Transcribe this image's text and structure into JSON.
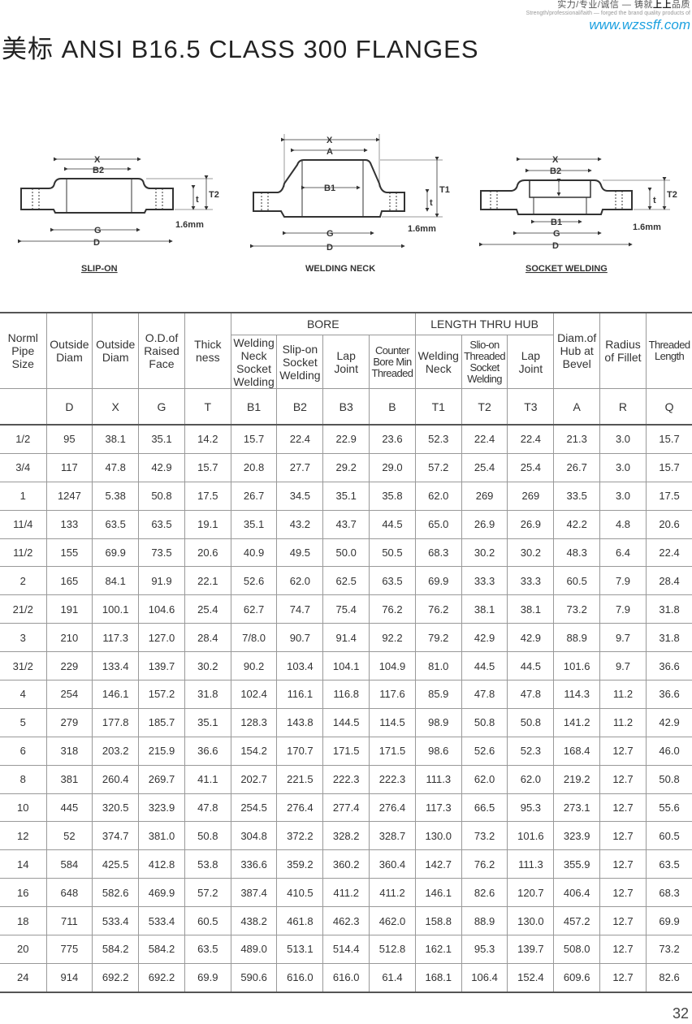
{
  "header": {
    "slogan_cn_prefix": "实力/专业/诚信 — 铸就",
    "slogan_cn_bold": "上上",
    "slogan_cn_suffix": "品质",
    "slogan_en": "Strength/professional/faith — forged the brand quality products of",
    "website": "www.wzssff.com"
  },
  "title": "美标 ANSI B16.5 CLASS 300 FLANGES",
  "diagrams": {
    "slip_on": {
      "caption": "SLIP-ON",
      "labels": {
        "x": "X",
        "b2": "B2",
        "t": "t",
        "t2": "T2",
        "mm": "1.6mm",
        "g": "G",
        "d": "D"
      }
    },
    "welding_neck": {
      "caption": "WELDING NECK",
      "labels": {
        "x": "X",
        "a": "A",
        "b1": "B1",
        "t1": "T1",
        "t": "t",
        "mm": "1.6mm",
        "g": "G",
        "d": "D"
      }
    },
    "socket_welding": {
      "caption": "SOCKET WELDING",
      "labels": {
        "x": "X",
        "b2": "B2",
        "t": "t",
        "t2": "T2",
        "b1": "B1",
        "g": "G",
        "mm": "1.6mm",
        "d": "D"
      }
    }
  },
  "table": {
    "group_headers": {
      "bore": "BORE",
      "length": "LENGTH THRU HUB"
    },
    "headers": {
      "size": "Norml Pipe Size",
      "d": "Outside Diam",
      "x": "Outside Diam",
      "g": "O.D.of Raised Face",
      "t": "Thick ness",
      "b1": "Welding Neck Socket Welding",
      "b2": "Slip-on Socket Welding",
      "b3": "Lap Joint",
      "b": "Counter Bore Min Threaded",
      "t1": "Welding Neck",
      "t2": "Slio-on Threaded Socket Welding",
      "t3": "Lap Joint",
      "a": "Diam.of Hub at Bevel",
      "r": "Radius of Fillet",
      "q": "Threaded Length"
    },
    "symbols": [
      "D",
      "X",
      "G",
      "T",
      "B1",
      "B2",
      "B3",
      "B",
      "T1",
      "T2",
      "T3",
      "A",
      "R",
      "Q"
    ],
    "rows": [
      [
        "1/2",
        "95",
        "38.1",
        "35.1",
        "14.2",
        "15.7",
        "22.4",
        "22.9",
        "23.6",
        "52.3",
        "22.4",
        "22.4",
        "21.3",
        "3.0",
        "15.7"
      ],
      [
        "3/4",
        "117",
        "47.8",
        "42.9",
        "15.7",
        "20.8",
        "27.7",
        "29.2",
        "29.0",
        "57.2",
        "25.4",
        "25.4",
        "26.7",
        "3.0",
        "15.7"
      ],
      [
        "1",
        "1247",
        "5.38",
        "50.8",
        "17.5",
        "26.7",
        "34.5",
        "35.1",
        "35.8",
        "62.0",
        "269",
        "269",
        "33.5",
        "3.0",
        "17.5"
      ],
      [
        "11/4",
        "133",
        "63.5",
        "63.5",
        "19.1",
        "35.1",
        "43.2",
        "43.7",
        "44.5",
        "65.0",
        "26.9",
        "26.9",
        "42.2",
        "4.8",
        "20.6"
      ],
      [
        "11/2",
        "155",
        "69.9",
        "73.5",
        "20.6",
        "40.9",
        "49.5",
        "50.0",
        "50.5",
        "68.3",
        "30.2",
        "30.2",
        "48.3",
        "6.4",
        "22.4"
      ],
      [
        "2",
        "165",
        "84.1",
        "91.9",
        "22.1",
        "52.6",
        "62.0",
        "62.5",
        "63.5",
        "69.9",
        "33.3",
        "33.3",
        "60.5",
        "7.9",
        "28.4"
      ],
      [
        "21/2",
        "191",
        "100.1",
        "104.6",
        "25.4",
        "62.7",
        "74.7",
        "75.4",
        "76.2",
        "76.2",
        "38.1",
        "38.1",
        "73.2",
        "7.9",
        "31.8"
      ],
      [
        "3",
        "210",
        "117.3",
        "127.0",
        "28.4",
        "7/8.0",
        "90.7",
        "91.4",
        "92.2",
        "79.2",
        "42.9",
        "42.9",
        "88.9",
        "9.7",
        "31.8"
      ],
      [
        "31/2",
        "229",
        "133.4",
        "139.7",
        "30.2",
        "90.2",
        "103.4",
        "104.1",
        "104.9",
        "81.0",
        "44.5",
        "44.5",
        "101.6",
        "9.7",
        "36.6"
      ],
      [
        "4",
        "254",
        "146.1",
        "157.2",
        "31.8",
        "102.4",
        "116.1",
        "116.8",
        "117.6",
        "85.9",
        "47.8",
        "47.8",
        "114.3",
        "11.2",
        "36.6"
      ],
      [
        "5",
        "279",
        "177.8",
        "185.7",
        "35.1",
        "128.3",
        "143.8",
        "144.5",
        "114.5",
        "98.9",
        "50.8",
        "50.8",
        "141.2",
        "11.2",
        "42.9"
      ],
      [
        "6",
        "318",
        "203.2",
        "215.9",
        "36.6",
        "154.2",
        "170.7",
        "171.5",
        "171.5",
        "98.6",
        "52.6",
        "52.3",
        "168.4",
        "12.7",
        "46.0"
      ],
      [
        "8",
        "381",
        "260.4",
        "269.7",
        "41.1",
        "202.7",
        "221.5",
        "222.3",
        "222.3",
        "111.3",
        "62.0",
        "62.0",
        "219.2",
        "12.7",
        "50.8"
      ],
      [
        "10",
        "445",
        "320.5",
        "323.9",
        "47.8",
        "254.5",
        "276.4",
        "277.4",
        "276.4",
        "117.3",
        "66.5",
        "95.3",
        "273.1",
        "12.7",
        "55.6"
      ],
      [
        "12",
        "52",
        "374.7",
        "381.0",
        "50.8",
        "304.8",
        "372.2",
        "328.2",
        "328.7",
        "130.0",
        "73.2",
        "101.6",
        "323.9",
        "12.7",
        "60.5"
      ],
      [
        "14",
        "584",
        "425.5",
        "412.8",
        "53.8",
        "336.6",
        "359.2",
        "360.2",
        "360.4",
        "142.7",
        "76.2",
        "111.3",
        "355.9",
        "12.7",
        "63.5"
      ],
      [
        "16",
        "648",
        "582.6",
        "469.9",
        "57.2",
        "387.4",
        "410.5",
        "411.2",
        "411.2",
        "146.1",
        "82.6",
        "120.7",
        "406.4",
        "12.7",
        "68.3"
      ],
      [
        "18",
        "711",
        "533.4",
        "533.4",
        "60.5",
        "438.2",
        "461.8",
        "462.3",
        "462.0",
        "158.8",
        "88.9",
        "130.0",
        "457.2",
        "12.7",
        "69.9"
      ],
      [
        "20",
        "775",
        "584.2",
        "584.2",
        "63.5",
        "489.0",
        "513.1",
        "514.4",
        "512.8",
        "162.1",
        "95.3",
        "139.7",
        "508.0",
        "12.7",
        "73.2"
      ],
      [
        "24",
        "914",
        "692.2",
        "692.2",
        "69.9",
        "590.6",
        "616.0",
        "616.0",
        "61.4",
        "168.1",
        "106.4",
        "152.4",
        "609.6",
        "12.7",
        "82.6"
      ]
    ]
  },
  "page_number": "32",
  "colors": {
    "website": "#1da1e0",
    "text": "#333333",
    "rule": "#999999"
  }
}
